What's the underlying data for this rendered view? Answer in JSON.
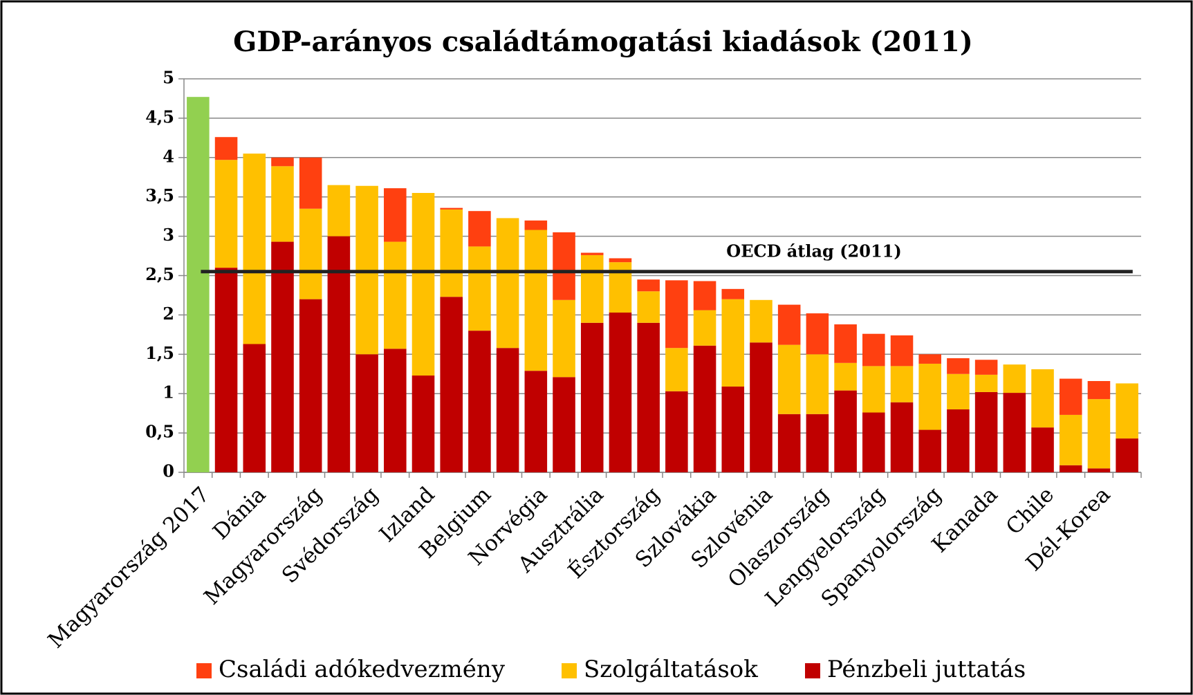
{
  "chart_data": {
    "type": "stacked-bar",
    "title": "GDP-arányos családtámogatási kiadások (2011)",
    "categories": [
      "Magyarország 2017",
      null,
      "Dánia",
      null,
      "Magyarország",
      null,
      "Svédország",
      null,
      "Izland",
      null,
      "Belgium",
      null,
      "Norvégia",
      null,
      "Ausztrália",
      null,
      "Észtország",
      null,
      "Szlovákia",
      null,
      "Szlovénia",
      null,
      "Olaszország",
      null,
      "Lengyelország",
      null,
      "Spanyolország",
      null,
      "Kanada",
      null,
      "Chile",
      null,
      "Dél-Korea",
      null
    ],
    "series": [
      {
        "name": "Pénzbeli juttatás",
        "color": "#c00000",
        "values": [
          4.77,
          2.6,
          1.63,
          2.93,
          2.2,
          3.0,
          1.5,
          1.57,
          1.23,
          2.23,
          1.8,
          1.58,
          1.29,
          1.21,
          1.9,
          2.03,
          1.9,
          1.03,
          1.61,
          1.09,
          1.65,
          0.74,
          0.74,
          1.04,
          0.76,
          0.89,
          0.54,
          0.8,
          1.02,
          1.01,
          0.57,
          0.09,
          0.05,
          0.43
        ]
      },
      {
        "name": "Szolgáltatások",
        "color": "#ffc000",
        "values": [
          null,
          1.37,
          2.42,
          0.96,
          1.15,
          0.65,
          2.14,
          1.36,
          2.32,
          1.11,
          1.07,
          1.65,
          1.79,
          0.98,
          0.86,
          0.64,
          0.4,
          0.55,
          0.45,
          1.11,
          0.54,
          0.88,
          0.76,
          0.35,
          0.59,
          0.46,
          0.84,
          0.45,
          0.22,
          0.36,
          0.74,
          0.64,
          0.88,
          0.7
        ]
      },
      {
        "name": "Családi adókedvezmény",
        "color": "#ff4010",
        "values": [
          null,
          0.29,
          null,
          0.11,
          0.65,
          null,
          null,
          0.68,
          null,
          0.02,
          0.45,
          null,
          0.12,
          0.86,
          0.03,
          0.05,
          0.15,
          0.86,
          0.37,
          0.13,
          null,
          0.51,
          0.52,
          0.49,
          0.41,
          0.39,
          0.12,
          0.2,
          0.19,
          null,
          null,
          0.46,
          0.23,
          null
        ]
      }
    ],
    "highlight": {
      "index": 0,
      "color": "#92d050"
    },
    "reference_line": {
      "label": "OECD átlag (2011)",
      "value": 2.55,
      "color": "#222222"
    },
    "ylim": [
      0,
      5
    ],
    "yticks": [
      0,
      {
        "value": 0.5,
        "label": "0,5"
      },
      1,
      {
        "value": 1.5,
        "label": "1,5"
      },
      2,
      {
        "value": 2.5,
        "label": "2,5"
      },
      3,
      {
        "value": 3.5,
        "label": "3,5"
      },
      4,
      {
        "value": 4.5,
        "label": "4,5"
      },
      5
    ],
    "grid": true,
    "legend": "bottom"
  }
}
